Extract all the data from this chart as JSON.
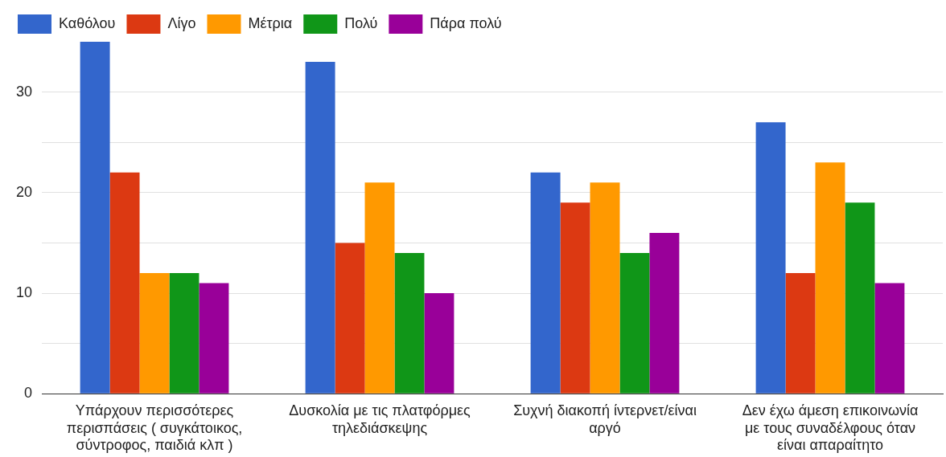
{
  "chart_data": {
    "type": "bar",
    "categories": [
      "Υπάρχουν περισσότερες περισπάσεις ( συγκάτοικος, σύντροφος, παιδιά κλπ )",
      "Δυσκολία με τις πλατφόρμες τηλεδιάσκεψης",
      "Συχνή διακοπή ίντερνετ/είναι αργό",
      "Δεν έχω άμεση επικοινωνία με τους συναδέλφους όταν είναι απαραίτητο"
    ],
    "series": [
      {
        "name": "Καθόλου",
        "color": "#3366cc",
        "values": [
          35,
          33,
          22,
          27
        ]
      },
      {
        "name": "Λίγο",
        "color": "#dc3912",
        "values": [
          22,
          15,
          19,
          12
        ]
      },
      {
        "name": "Μέτρια",
        "color": "#ff9900",
        "values": [
          12,
          21,
          21,
          23
        ]
      },
      {
        "name": "Πολύ",
        "color": "#109618",
        "values": [
          12,
          14,
          14,
          19
        ]
      },
      {
        "name": "Πάρα πολύ",
        "color": "#990099",
        "values": [
          11,
          10,
          16,
          11
        ]
      }
    ],
    "ylim": [
      0,
      35
    ],
    "yticks": [
      0,
      {
        "value": 5,
        "label": null
      },
      10,
      {
        "value": 15,
        "label": null
      },
      20,
      {
        "value": 25,
        "label": null
      },
      30
    ],
    "grid": "y",
    "legend": "top left"
  }
}
